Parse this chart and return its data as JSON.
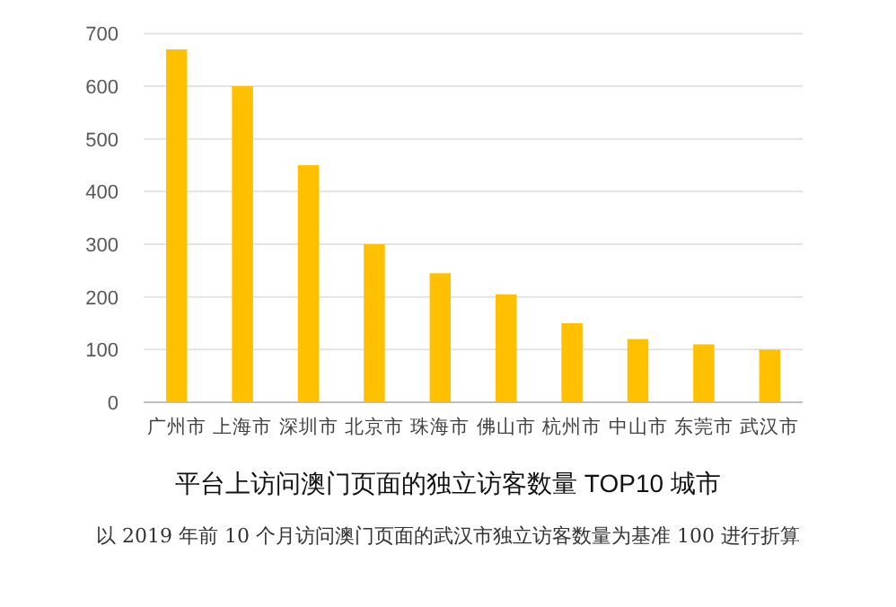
{
  "chart_data": {
    "type": "bar",
    "title": "平台上访问澳门页面的独立访客数量 TOP10 城市",
    "categories": [
      "广州市",
      "上海市",
      "深圳市",
      "北京市",
      "珠海市",
      "佛山市",
      "杭州市",
      "中山市",
      "东莞市",
      "武汉市"
    ],
    "values": [
      670,
      600,
      450,
      300,
      245,
      205,
      150,
      120,
      110,
      100
    ],
    "color": "#ffc000",
    "ylim": [
      0,
      700
    ],
    "yticks": [
      0,
      100,
      200,
      300,
      400,
      500,
      600,
      700
    ],
    "grid": "y",
    "annotations": [
      "以 2019 年前 10 个月访问澳门页面的武汉市独立访客数量为基准 100 进行折算"
    ]
  }
}
